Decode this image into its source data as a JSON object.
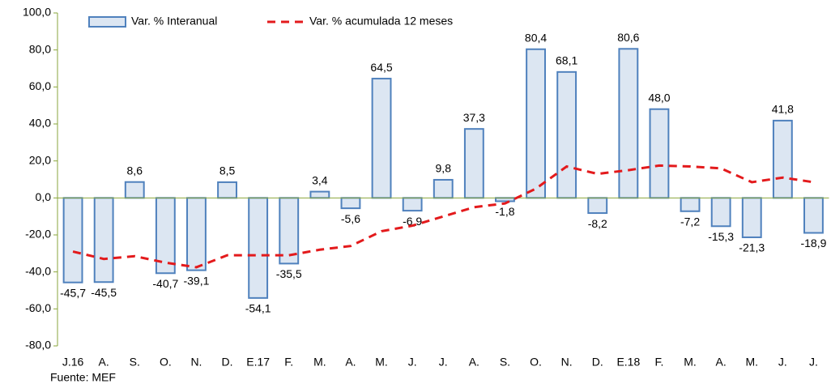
{
  "chart_data": {
    "type": "bar",
    "categories": [
      "J.16",
      "A.",
      "S.",
      "O.",
      "N.",
      "D.",
      "E.17",
      "F.",
      "M.",
      "A.",
      "M.",
      "J.",
      "J.",
      "A.",
      "S.",
      "O.",
      "N.",
      "D.",
      "E.18",
      "F.",
      "M.",
      "A.",
      "M.",
      "J.",
      "J."
    ],
    "series": [
      {
        "name": "Var. % Interanual",
        "type": "bar",
        "color": "#4f81bd",
        "fill": "#dce6f2",
        "values": [
          -45.7,
          -45.5,
          8.6,
          -40.7,
          -39.1,
          8.5,
          -54.1,
          -35.5,
          3.4,
          -5.6,
          64.5,
          -6.9,
          9.8,
          37.3,
          -1.8,
          80.4,
          68.1,
          -8.2,
          80.6,
          48.0,
          -7.2,
          -15.3,
          -21.3,
          41.8,
          -18.9
        ],
        "value_labels": [
          "-45,7",
          "-45,5",
          "8,6",
          "-40,7",
          "-39,1",
          "8,5",
          "-54,1",
          "-35,5",
          "3,4",
          "-5,6",
          "64,5",
          "-6,9",
          "9,8",
          "37,3",
          "-1,8",
          "80,4",
          "68,1",
          "-8,2",
          "80,6",
          "48,0",
          "-7,2",
          "-15,3",
          "-21,3",
          "41,8",
          "-18,9"
        ]
      },
      {
        "name": "Var. % acumulada 12 meses",
        "type": "line",
        "color": "#e31a1c",
        "values": [
          -29,
          -33,
          -31.5,
          -35,
          -37.5,
          -31,
          -31,
          -31,
          -28,
          -26,
          -18,
          -15,
          -10,
          -5,
          -3,
          5,
          17,
          13,
          15,
          17.5,
          17,
          16,
          8.5,
          11,
          8.5
        ]
      }
    ],
    "ylim": [
      -80,
      100
    ],
    "yticks": [
      {
        "value": -80,
        "label": "-80,0"
      },
      {
        "value": -60,
        "label": "-60,0"
      },
      {
        "value": -40,
        "label": "-40,0"
      },
      {
        "value": -20,
        "label": "-20,0"
      },
      {
        "value": 0,
        "label": "0,0"
      },
      {
        "value": 20,
        "label": "20,0"
      },
      {
        "value": 40,
        "label": "40,0"
      },
      {
        "value": 60,
        "label": "60,0"
      },
      {
        "value": 80,
        "label": "80,0"
      },
      {
        "value": 100,
        "label": "100,0"
      }
    ],
    "grid": false,
    "source": "Fuente: MEF"
  }
}
